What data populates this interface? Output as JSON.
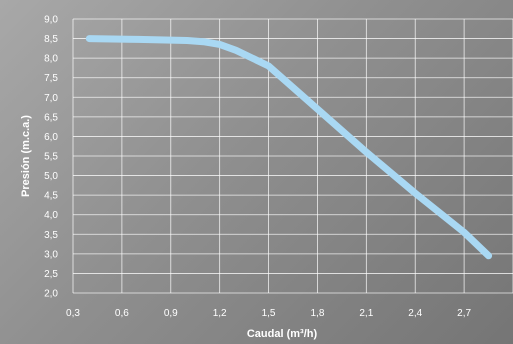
{
  "chart_data": {
    "type": "line",
    "xlabel": "Caudal (m³/h)",
    "ylabel": "Presión (m.c.a.)",
    "xlim": [
      0.3,
      3.0
    ],
    "ylim": [
      2.0,
      9.0
    ],
    "x_ticks": [
      "0,3",
      "0,6",
      "0,9",
      "1,2",
      "1,5",
      "1,8",
      "2,1",
      "2,4",
      "2,7"
    ],
    "y_ticks": [
      "9,0",
      "8,5",
      "8,0",
      "7,5",
      "7,0",
      "6,5",
      "6,0",
      "5,5",
      "5,0",
      "4,5",
      "4,0",
      "3,5",
      "3,0",
      "2,5",
      "2,0"
    ],
    "grid": true,
    "series": [
      {
        "color": "#a9d8f3",
        "x": [
          0.4,
          0.7,
          1.0,
          1.1,
          1.2,
          1.3,
          1.4,
          1.5,
          1.8,
          2.1,
          2.4,
          2.7,
          2.85
        ],
        "y": [
          8.5,
          8.48,
          8.45,
          8.42,
          8.35,
          8.2,
          8.0,
          7.8,
          6.7,
          5.6,
          4.55,
          3.55,
          2.95
        ]
      }
    ]
  }
}
